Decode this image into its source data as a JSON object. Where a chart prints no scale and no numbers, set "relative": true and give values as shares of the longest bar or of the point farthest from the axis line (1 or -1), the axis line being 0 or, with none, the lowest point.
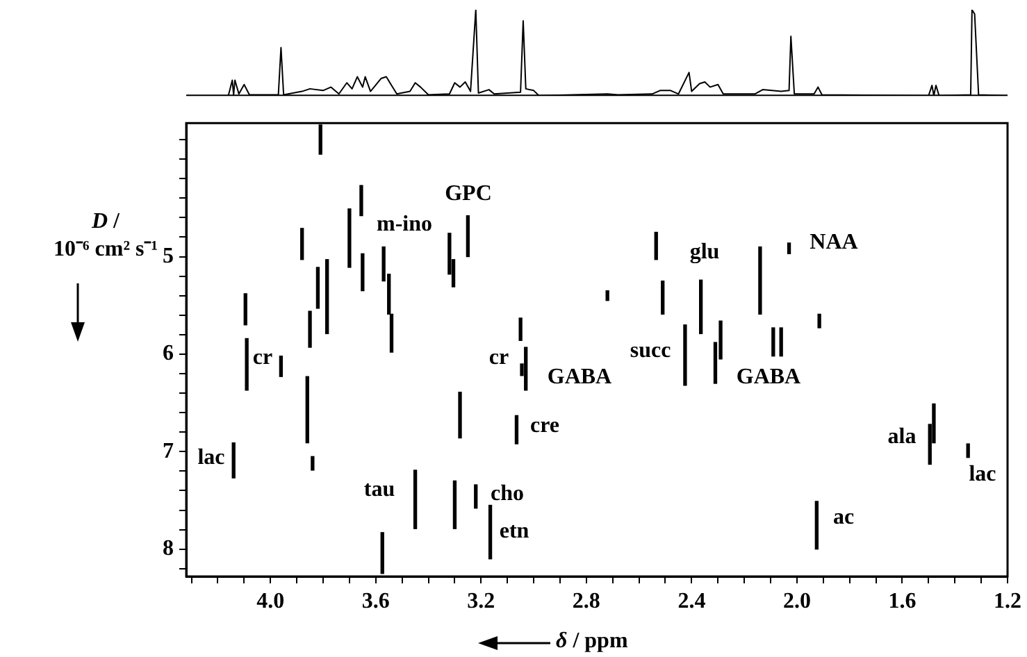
{
  "chart_data": [
    {
      "type": "line",
      "relative": true,
      "xlim": [
        4.32,
        1.2
      ],
      "tick_labels": false,
      "marker": "none",
      "color": "#000000",
      "x": [
        4.32,
        4.16,
        4.145,
        4.14,
        4.135,
        4.12,
        4.1,
        4.08,
        3.97,
        3.96,
        3.95,
        3.88,
        3.85,
        3.8,
        3.77,
        3.74,
        3.71,
        3.69,
        3.67,
        3.65,
        3.64,
        3.62,
        3.58,
        3.56,
        3.54,
        3.52,
        3.47,
        3.45,
        3.43,
        3.4,
        3.32,
        3.3,
        3.28,
        3.26,
        3.24,
        3.22,
        3.21,
        3.17,
        3.15,
        3.05,
        3.04,
        3.03,
        3.0,
        2.98,
        2.72,
        2.68,
        2.55,
        2.52,
        2.48,
        2.45,
        2.41,
        2.4,
        2.37,
        2.35,
        2.33,
        2.3,
        2.28,
        2.16,
        2.13,
        2.06,
        2.03,
        2.023,
        2.01,
        1.935,
        1.92,
        1.905,
        1.5,
        1.487,
        1.48,
        1.472,
        1.46,
        1.34,
        1.335,
        1.325,
        1.31,
        1.2
      ],
      "values": [
        0,
        0,
        0.18,
        0.01,
        0.18,
        0.02,
        0.13,
        0.01,
        0.01,
        0.56,
        0.01,
        0.05,
        0.08,
        0.06,
        0.1,
        0.02,
        0.15,
        0.08,
        0.22,
        0.1,
        0.22,
        0.05,
        0.2,
        0.22,
        0.12,
        0.02,
        0.05,
        0.15,
        0.1,
        0.01,
        0.02,
        0.15,
        0.1,
        0.16,
        0.05,
        1.0,
        0.03,
        0.07,
        0.02,
        0.04,
        0.87,
        0.08,
        0.06,
        0,
        0.02,
        0.01,
        0.02,
        0.06,
        0.06,
        0.02,
        0.27,
        0.05,
        0.14,
        0.16,
        0.1,
        0.13,
        0.02,
        0.02,
        0.07,
        0.05,
        0.06,
        0.69,
        0.02,
        0.02,
        0.1,
        0.01,
        0,
        0.12,
        0,
        0.12,
        0,
        0.01,
        1.0,
        0.95,
        0.01,
        0
      ]
    },
    {
      "type": "bar",
      "color": "#000000",
      "xlabel": "δ / ppm",
      "ylabel": "D / 10⁻⁶ cm² s⁻¹",
      "xlim": [
        4.32,
        1.2
      ],
      "ylim": [
        8.28,
        3.63
      ],
      "xticks": [
        {
          "value": 4.3,
          "label": null
        },
        {
          "value": 4.2,
          "label": null
        },
        {
          "value": 4.1,
          "label": null
        },
        {
          "value": 4,
          "label": "4.0"
        },
        {
          "value": 3.9,
          "label": null
        },
        {
          "value": 3.8,
          "label": null
        },
        {
          "value": 3.7,
          "label": null
        },
        {
          "value": 3.6,
          "label": "3.6"
        },
        {
          "value": 3.5,
          "label": null
        },
        {
          "value": 3.4,
          "label": null
        },
        {
          "value": 3.3,
          "label": null
        },
        {
          "value": 3.2,
          "label": "3.2"
        },
        {
          "value": 3.1,
          "label": null
        },
        {
          "value": 3,
          "label": null
        },
        {
          "value": 2.9,
          "label": null
        },
        {
          "value": 2.8,
          "label": "2.8"
        },
        {
          "value": 2.7,
          "label": null
        },
        {
          "value": 2.6,
          "label": null
        },
        {
          "value": 2.5,
          "label": null
        },
        {
          "value": 2.4,
          "label": "2.4"
        },
        {
          "value": 2.3,
          "label": null
        },
        {
          "value": 2.2,
          "label": null
        },
        {
          "value": 2.1,
          "label": null
        },
        {
          "value": 2,
          "label": "2.0"
        },
        {
          "value": 1.9,
          "label": null
        },
        {
          "value": 1.8,
          "label": null
        },
        {
          "value": 1.7,
          "label": null
        },
        {
          "value": 1.6,
          "label": "1.6"
        },
        {
          "value": 1.5,
          "label": null
        },
        {
          "value": 1.4,
          "label": null
        },
        {
          "value": 1.3,
          "label": null
        },
        {
          "value": 1.2,
          "label": "1.2"
        }
      ],
      "yticks": [
        {
          "value": 3.8,
          "label": null
        },
        {
          "value": 4,
          "label": null
        },
        {
          "value": 4.2,
          "label": null
        },
        {
          "value": 4.4,
          "label": null
        },
        {
          "value": 4.6,
          "label": null
        },
        {
          "value": 4.8,
          "label": null
        },
        5,
        {
          "value": 5.2,
          "label": null
        },
        {
          "value": 5.4,
          "label": null
        },
        {
          "value": 5.6,
          "label": null
        },
        {
          "value": 5.8,
          "label": null
        },
        6,
        {
          "value": 6.2,
          "label": null
        },
        {
          "value": 6.4,
          "label": null
        },
        {
          "value": 6.6,
          "label": null
        },
        {
          "value": 6.8,
          "label": null
        },
        7,
        {
          "value": 7.2,
          "label": null
        },
        {
          "value": 7.4,
          "label": null
        },
        {
          "value": 7.6,
          "label": null
        },
        {
          "value": 7.8,
          "label": null
        },
        8,
        {
          "value": 8.2,
          "label": null
        }
      ],
      "x": [
        4.14,
        4.095,
        4.09,
        3.96,
        3.88,
        3.86,
        3.85,
        3.84,
        3.82,
        3.81,
        3.785,
        3.7,
        3.655,
        3.65,
        3.575,
        3.57,
        3.55,
        3.54,
        3.45,
        3.32,
        3.305,
        3.3,
        3.28,
        3.25,
        3.22,
        3.165,
        3.065,
        3.05,
        3.045,
        3.03,
        2.72,
        2.535,
        2.51,
        2.425,
        2.365,
        2.31,
        2.29,
        2.14,
        2.09,
        2.06,
        2.03,
        1.925,
        1.915,
        1.495,
        1.48,
        1.35
      ],
      "base": [
        6.91,
        5.38,
        5.84,
        6.02,
        4.71,
        6.23,
        5.56,
        7.05,
        5.11,
        3.65,
        5.03,
        4.51,
        4.27,
        4.97,
        7.83,
        4.9,
        5.18,
        5.59,
        7.19,
        4.76,
        5.03,
        7.3,
        6.39,
        4.58,
        7.34,
        7.55,
        6.63,
        5.63,
        6.1,
        5.93,
        5.35,
        4.75,
        5.25,
        5.7,
        5.24,
        5.88,
        5.66,
        4.9,
        5.73,
        5.73,
        4.86,
        7.51,
        5.59,
        6.72,
        6.51,
        6.92
      ],
      "values": [
        0.36,
        0.32,
        0.53,
        0.21,
        0.32,
        0.68,
        0.37,
        0.14,
        0.42,
        0.3,
        0.76,
        0.6,
        0.31,
        0.38,
        0.42,
        0.35,
        0.41,
        0.39,
        0.6,
        0.42,
        0.28,
        0.49,
        0.47,
        0.42,
        0.24,
        0.55,
        0.29,
        0.23,
        0.12,
        0.44,
        0.1,
        0.28,
        0.34,
        0.62,
        0.55,
        0.42,
        0.39,
        0.69,
        0.29,
        0.29,
        0.11,
        0.49,
        0.14,
        0.41,
        0.4,
        0.14
      ],
      "annotations": [
        "lac",
        "cr",
        "m-ino",
        "GPC",
        "cr",
        "tau",
        "cho",
        "etn",
        "GABA",
        "cre",
        "succ",
        "glu",
        "GABA",
        "NAA",
        "ala",
        "lac",
        "ac"
      ]
    }
  ]
}
